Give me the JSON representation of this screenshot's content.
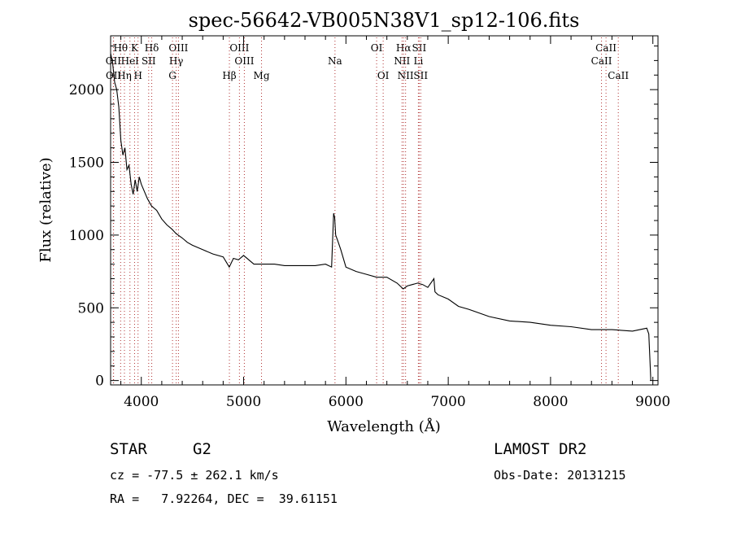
{
  "chart_data": {
    "type": "line",
    "title": "spec-56642-VB005N38V1_sp12-106.fits",
    "xlabel": "Wavelength (Å)",
    "ylabel": "Flux (relative)",
    "xlim": [
      3700,
      9050
    ],
    "ylim": [
      -30,
      2370
    ],
    "xticks": [
      4000,
      5000,
      6000,
      7000,
      8000,
      9000
    ],
    "yticks": [
      0,
      500,
      1000,
      1500,
      2000
    ],
    "grid": false,
    "line_color": "#000000",
    "series": [
      {
        "x": [
          3700,
          3720,
          3740,
          3760,
          3780,
          3800,
          3820,
          3840,
          3860,
          3880,
          3900,
          3920,
          3940,
          3960,
          3980,
          4000,
          4030,
          4060,
          4100,
          4150,
          4200,
          4250,
          4300,
          4340,
          4400,
          4450,
          4500,
          4600,
          4700,
          4800,
          4860,
          4900,
          4950,
          5000,
          5100,
          5200,
          5300,
          5400,
          5500,
          5600,
          5700,
          5800,
          5860,
          5880,
          5890,
          5900,
          5920,
          5950,
          6000,
          6100,
          6200,
          6300,
          6400,
          6500,
          6560,
          6600,
          6700,
          6750,
          6800,
          6860,
          6870,
          6900,
          7000,
          7100,
          7200,
          7400,
          7600,
          7800,
          8000,
          8200,
          8400,
          8600,
          8800,
          8940,
          8960,
          8980
        ],
        "y": [
          2250,
          2180,
          2050,
          2000,
          1880,
          1650,
          1550,
          1600,
          1450,
          1480,
          1350,
          1280,
          1380,
          1300,
          1400,
          1350,
          1300,
          1250,
          1200,
          1170,
          1110,
          1070,
          1040,
          1010,
          980,
          950,
          930,
          900,
          870,
          850,
          780,
          840,
          830,
          860,
          800,
          800,
          800,
          790,
          790,
          790,
          790,
          800,
          780,
          1150,
          1120,
          1000,
          960,
          900,
          780,
          750,
          730,
          710,
          710,
          670,
          630,
          650,
          670,
          660,
          640,
          700,
          610,
          590,
          560,
          510,
          490,
          440,
          410,
          400,
          380,
          370,
          350,
          350,
          340,
          360,
          320,
          0
        ]
      }
    ],
    "lines": [
      {
        "label": "Hθ",
        "lambda": 3798,
        "row": 1
      },
      {
        "label": "K",
        "lambda": 3934,
        "row": 1
      },
      {
        "label": "Hδ",
        "lambda": 4102,
        "row": 1
      },
      {
        "label": "OIII",
        "lambda": 4363,
        "row": 1
      },
      {
        "label": "OIII",
        "lambda": 4959,
        "row": 1
      },
      {
        "label": "OI",
        "lambda": 6300,
        "row": 1
      },
      {
        "label": "Hα",
        "lambda": 6563,
        "row": 1
      },
      {
        "label": "SII",
        "lambda": 6716,
        "row": 1
      },
      {
        "label": "CaII",
        "lambda": 8542,
        "row": 1
      },
      {
        "label": "OII",
        "lambda": 3727,
        "row": 2
      },
      {
        "label": "HeI",
        "lambda": 3889,
        "row": 2
      },
      {
        "label": "SII",
        "lambda": 4072,
        "row": 2
      },
      {
        "label": "Hγ",
        "lambda": 4341,
        "row": 2
      },
      {
        "label": "OIII",
        "lambda": 5007,
        "row": 2
      },
      {
        "label": "Na",
        "lambda": 5893,
        "row": 2
      },
      {
        "label": "NII",
        "lambda": 6548,
        "row": 2
      },
      {
        "label": "Li",
        "lambda": 6708,
        "row": 2
      },
      {
        "label": "CaII",
        "lambda": 8498,
        "row": 2
      },
      {
        "label": "OII",
        "lambda": 3729,
        "row": 3
      },
      {
        "label": "Hη",
        "lambda": 3835,
        "row": 3
      },
      {
        "label": "H",
        "lambda": 3968,
        "row": 3
      },
      {
        "label": "G",
        "lambda": 4305,
        "row": 3
      },
      {
        "label": "Hβ",
        "lambda": 4861,
        "row": 3
      },
      {
        "label": "Mg",
        "lambda": 5175,
        "row": 3
      },
      {
        "label": "OI",
        "lambda": 6364,
        "row": 3
      },
      {
        "label": "NII",
        "lambda": 6583,
        "row": 3
      },
      {
        "label": "SII",
        "lambda": 6731,
        "row": 3
      },
      {
        "label": "CaII",
        "lambda": 8662,
        "row": 3
      }
    ]
  },
  "info": {
    "object_class": "STAR",
    "subclass": "G2",
    "survey": "LAMOST DR2",
    "redshift": "cz = -77.5 ± 262.1 km/s",
    "obs_date": "Obs-Date: 20131215",
    "coords": "RA =   7.92264, DEC =  39.61151"
  }
}
